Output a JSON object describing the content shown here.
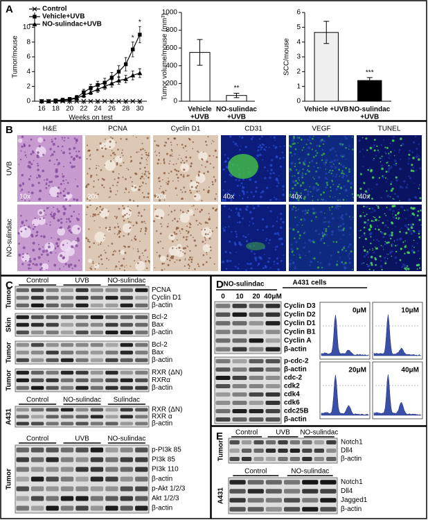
{
  "chart_data": [
    {
      "type": "line",
      "y_label": "Tumor/mouse",
      "x_label": "Weeks on test",
      "x": [
        16,
        17,
        18,
        19,
        20,
        21,
        22,
        23,
        24,
        25,
        26,
        27,
        28,
        29,
        30
      ],
      "xlim": [
        15,
        31
      ],
      "xticks": [
        16,
        18,
        20,
        22,
        24,
        26,
        28,
        30
      ],
      "ylim": [
        0,
        12
      ],
      "yticks": [
        0,
        2,
        4,
        6,
        8,
        10
      ],
      "series": [
        {
          "name": "Control",
          "color": "#000000",
          "marker": "x",
          "values": [
            0,
            0,
            0,
            0,
            0,
            0,
            0,
            0,
            0,
            0,
            0,
            0,
            0,
            0,
            0
          ]
        },
        {
          "name": "Vehicle+UVB",
          "color": "#000000",
          "marker": "square",
          "values": [
            0,
            0,
            0.1,
            0.2,
            0.3,
            0.5,
            1.2,
            1.8,
            2.2,
            2.5,
            3.2,
            4.0,
            5.0,
            7.0,
            9.0
          ],
          "errors": [
            0,
            0,
            0.1,
            0.1,
            0.2,
            0.3,
            0.4,
            0.5,
            0.5,
            0.6,
            0.7,
            0.8,
            0.9,
            1.0,
            1.1
          ]
        },
        {
          "name": "NO-sulindac+UVB",
          "color": "#000000",
          "marker": "triangle",
          "values": [
            0,
            0,
            0,
            0.1,
            0.2,
            0.4,
            0.8,
            1.2,
            1.6,
            2.0,
            2.4,
            2.8,
            3.0,
            3.5,
            3.8
          ],
          "errors": [
            0,
            0,
            0,
            0.1,
            0.1,
            0.2,
            0.3,
            0.3,
            0.4,
            0.4,
            0.5,
            0.5,
            0.5,
            0.6,
            0.6
          ]
        }
      ],
      "significance": [
        null,
        null,
        null,
        null,
        null,
        null,
        null,
        null,
        null,
        null,
        null,
        null,
        null,
        "*",
        "*"
      ]
    },
    {
      "type": "bar",
      "y_label": "Tumor volume/mouse (mm³)",
      "categories": [
        [
          "Vehicle",
          "+UVB"
        ],
        [
          "NO-sulindac",
          "+UVB"
        ]
      ],
      "values": [
        550,
        65
      ],
      "errors": [
        145,
        25
      ],
      "colors": [
        "#ffffff",
        "#ffffff"
      ],
      "significance": [
        null,
        "**"
      ],
      "ylim": [
        0,
        1000
      ],
      "yticks": [
        0,
        200,
        400,
        600,
        800,
        1000
      ]
    },
    {
      "type": "bar",
      "y_label": "SCC/mouse",
      "categories": [
        [
          "Vehicle +UVB"
        ],
        [
          "NO-sulindac",
          "+UVB"
        ]
      ],
      "values": [
        4.65,
        1.4
      ],
      "errors": [
        0.75,
        0.2
      ],
      "colors": [
        "#f0f0f0",
        "#000000"
      ],
      "significance": [
        null,
        "***"
      ],
      "ylim": [
        0,
        6
      ],
      "yticks": [
        0,
        1,
        2,
        3,
        4,
        5,
        6
      ]
    }
  ],
  "panel_a_label": "A",
  "panel_b": {
    "label": "B",
    "columns": [
      "H&E",
      "PCNA",
      "Cyclin D1",
      "CD31",
      "VEGF",
      "TUNEL"
    ],
    "rows": [
      "UVB",
      "NO-sulindac"
    ],
    "magnifications": [
      "10x",
      "20x",
      "20x",
      "40x",
      "40x",
      "40x"
    ]
  },
  "panel_c": {
    "label": "C",
    "groups": [
      {
        "headers": [
          "Control",
          "UVB",
          "NO-sulindac"
        ],
        "blots": [
          {
            "sample": "Tumor",
            "proteins": [
              "PCNA",
              "Cyclin D1",
              "β-actin"
            ]
          },
          {
            "sample": "Skin",
            "proteins": [
              "Bcl-2",
              "Bax",
              "β-actin"
            ]
          },
          {
            "sample": "Tumor",
            "proteins": [
              "Bcl-2",
              "Bax",
              "β-actin"
            ]
          },
          {
            "sample": "Tumor",
            "proteins": [
              "RXR (ΔN)",
              "RXRα",
              "β-actin"
            ]
          }
        ]
      },
      {
        "headers": [
          "Control",
          "NO-sulindac",
          "Sulindac"
        ],
        "blots": [
          {
            "sample": "A431",
            "proteins": [
              "RXR (ΔN)",
              "RXR α",
              "β-actin"
            ]
          }
        ]
      },
      {
        "headers": [
          "Control",
          "UVB",
          "NO-sulindac"
        ],
        "blots": [
          {
            "sample": "Tumor",
            "proteins": [
              "p-PI3k 85",
              "PI3k 85",
              "PI3k 110",
              "β-actin",
              "p-Akt 1/2/3",
              "Akt 1/2/3",
              "β-actin"
            ]
          }
        ]
      }
    ]
  },
  "panel_d": {
    "label": "D",
    "treatment": "NO-sulindac",
    "cells": "A431 cells",
    "doses": [
      "0",
      "10",
      "20",
      "40μM"
    ],
    "blots": [
      {
        "proteins": [
          "Cyclin D3",
          "Cyclin D2",
          "Cyclin D1",
          "Cyclin B1",
          "Cyclin  A",
          "β-actin"
        ]
      },
      {
        "proteins": [
          "p-cdc-2",
          "β-actin",
          "cdc-2",
          "cdk2",
          "cdk4",
          "cdk6",
          "cdc25B",
          "β-actin"
        ]
      }
    ],
    "flow_labels": [
      "0μM",
      "10μM",
      "20μM",
      "40μM"
    ]
  },
  "panel_e": {
    "label": "E",
    "groups": [
      {
        "headers": [
          "Control",
          "UVB",
          "NO-sulindac"
        ],
        "blots": [
          {
            "sample": "Tumor",
            "proteins": [
              "Notch1",
              "Dll4",
              "β-actin"
            ]
          }
        ]
      },
      {
        "headers": [
          "Control",
          "NO-sulindac"
        ],
        "blots": [
          {
            "sample": "A431",
            "proteins": [
              "Notch1",
              "Dll4",
              "Jagged1",
              "β-actin"
            ]
          }
        ]
      }
    ]
  }
}
